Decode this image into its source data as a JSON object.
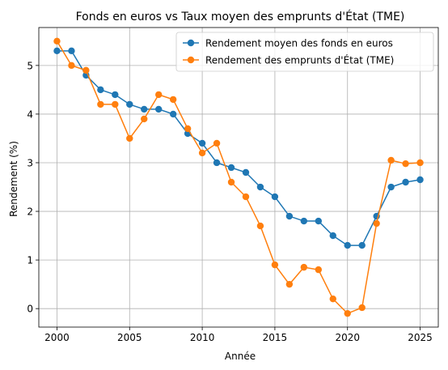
{
  "chart_data": {
    "type": "line",
    "title": "Fonds en euros vs Taux moyen des emprunts d'État (TME)",
    "xlabel": "Année",
    "ylabel": "Rendement (%)",
    "x": [
      2000,
      2001,
      2002,
      2003,
      2004,
      2005,
      2006,
      2007,
      2008,
      2009,
      2010,
      2011,
      2012,
      2013,
      2014,
      2015,
      2016,
      2017,
      2018,
      2019,
      2020,
      2021,
      2022,
      2023,
      2024,
      2025
    ],
    "xlim": [
      1998.75,
      2026.25
    ],
    "ylim": [
      -0.38,
      5.78
    ],
    "xticks": [
      2000,
      2005,
      2010,
      2015,
      2020,
      2025
    ],
    "yticks": [
      0,
      1,
      2,
      3,
      4,
      5
    ],
    "grid": true,
    "legend": "top-right",
    "series": [
      {
        "name": "Rendement moyen des fonds en euros",
        "color": "#1f77b4",
        "values": [
          5.3,
          5.3,
          4.8,
          4.5,
          4.4,
          4.2,
          4.1,
          4.1,
          4.0,
          3.6,
          3.4,
          3.0,
          2.9,
          2.8,
          2.5,
          2.3,
          1.9,
          1.8,
          1.8,
          1.5,
          1.3,
          1.3,
          1.9,
          2.5,
          2.6,
          2.65
        ]
      },
      {
        "name": "Rendement des emprunts d'État (TME)",
        "color": "#ff7f0e",
        "values": [
          5.5,
          5.0,
          4.9,
          4.2,
          4.2,
          3.5,
          3.9,
          4.4,
          4.3,
          3.7,
          3.2,
          3.4,
          2.6,
          2.3,
          1.7,
          0.9,
          0.5,
          0.85,
          0.8,
          0.2,
          -0.1,
          0.02,
          1.75,
          3.05,
          2.98,
          3.0
        ]
      }
    ]
  }
}
